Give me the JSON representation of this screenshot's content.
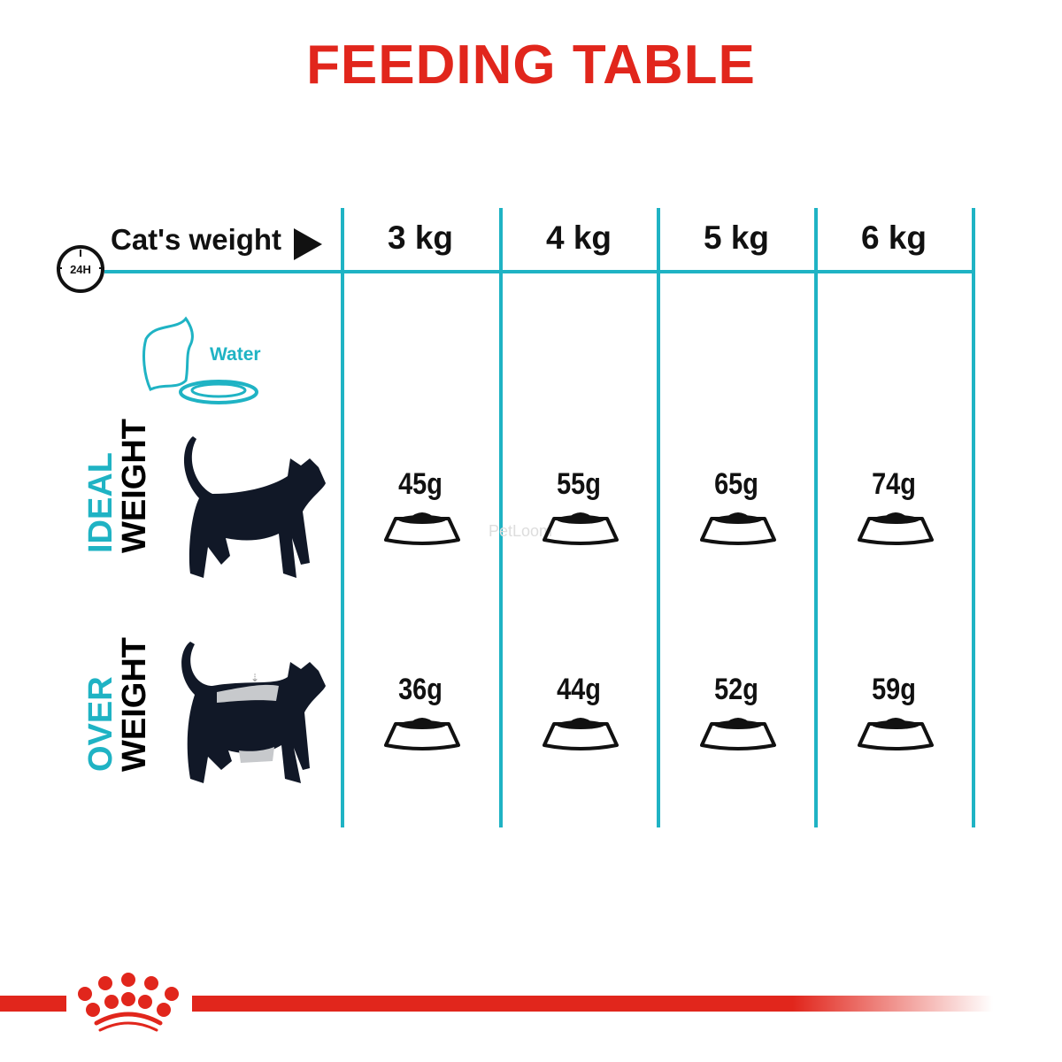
{
  "title": "FEEDING TABLE",
  "header": {
    "clock_label": "24H",
    "row_label": "Cat's weight",
    "weights": [
      "3 kg",
      "4 kg",
      "5 kg",
      "6 kg"
    ]
  },
  "water_label": "Water",
  "rows": [
    {
      "label_top": "IDEAL",
      "label_bottom": "WEIGHT",
      "amounts": [
        "45g",
        "55g",
        "65g",
        "74g"
      ]
    },
    {
      "label_top": "OVER",
      "label_bottom": "WEIGHT",
      "amounts": [
        "36g",
        "44g",
        "52g",
        "59g"
      ]
    }
  ],
  "watermark": "PetLoom",
  "colors": {
    "title": "#e1261c",
    "accent": "#1fb3c4",
    "brand": "#e1261c"
  }
}
